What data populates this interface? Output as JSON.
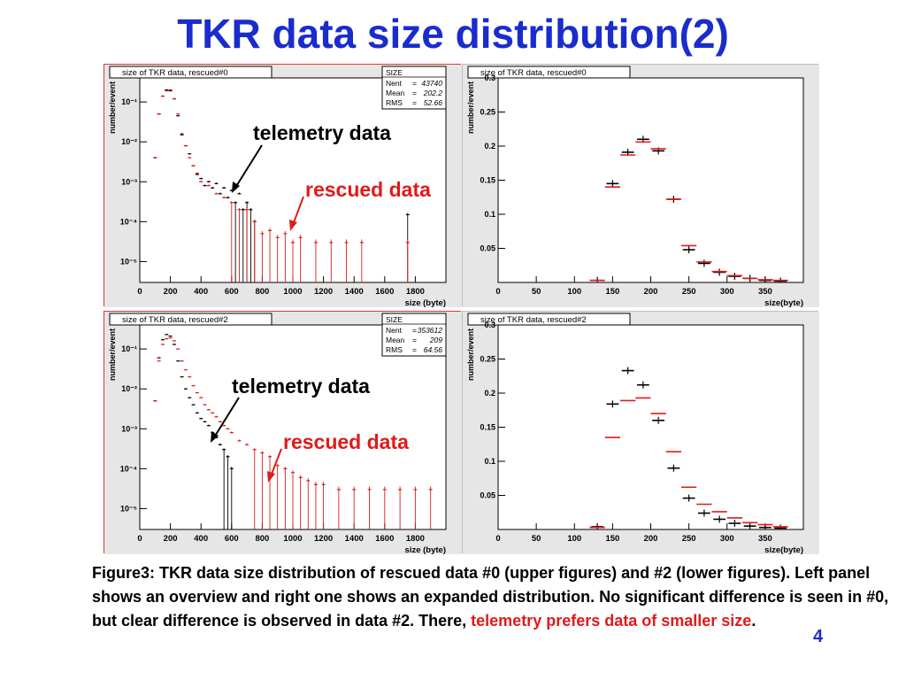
{
  "page": {
    "title": "TKR data size distribution(2)",
    "page_number": "4",
    "caption_main": "Figure3: TKR data size distribution of rescued data #0 (upper figures) and #2 (lower figures). Left panel shows an overview and right one shows an expanded distribution. No significant difference is seen in #0, but clear difference is observed in data #2. There, ",
    "caption_highlight": "telemetry prefers data of smaller size",
    "caption_end": "."
  },
  "annotations": {
    "top_telemetry": "telemetry data",
    "top_rescued": "rescued data",
    "bottom_telemetry": "telemetry data",
    "bottom_rescued": "rescued data"
  },
  "colors": {
    "telemetry": "#000000",
    "rescued": "#e01a1a",
    "title": "#1a2ccc",
    "frame": "#d93a3a",
    "panel_bg": "#e6e6e6"
  },
  "chart_data": [
    {
      "type": "scatter",
      "title": "size of TKR data, rescued#0",
      "xlabel": "size (byte)",
      "ylabel": "number/event",
      "log_y": true,
      "xlim": [
        0,
        2000
      ],
      "ylim": [
        3e-06,
        0.4
      ],
      "xticks": [
        0,
        200,
        400,
        600,
        800,
        1000,
        1200,
        1400,
        1600,
        1800
      ],
      "yticks": [
        {
          "v": 0.1,
          "label": "10⁻¹"
        },
        {
          "v": 0.01,
          "label": "10⁻²"
        },
        {
          "v": 0.001,
          "label": "10⁻³"
        },
        {
          "v": 0.0001,
          "label": "10⁻⁴"
        },
        {
          "v": 1e-05,
          "label": "10⁻⁵"
        }
      ],
      "stats": {
        "header": "SIZE",
        "rows": [
          [
            "Nent",
            "43740"
          ],
          [
            "Mean",
            "202.2"
          ],
          [
            "RMS",
            "52.66"
          ]
        ]
      },
      "series": [
        {
          "name": "telemetry data",
          "color": "#000000",
          "x": [
            100,
            125,
            150,
            175,
            200,
            225,
            250,
            275,
            300,
            325,
            350,
            375,
            400,
            425,
            450,
            475,
            500,
            525,
            550,
            575,
            600,
            625,
            650,
            675,
            700,
            725,
            750,
            1750
          ],
          "y": [
            0.004,
            0.05,
            0.14,
            0.2,
            0.19,
            0.12,
            0.045,
            0.015,
            0.008,
            0.005,
            0.0025,
            0.0016,
            0.0012,
            0.0008,
            0.001,
            0.0007,
            0.0009,
            0.0005,
            0.0007,
            0.0004,
            0.0006,
            0.0003,
            0.0005,
            0.0002,
            0.0003,
            0.0002,
            0.0001,
            0.00015
          ]
        },
        {
          "name": "rescued data",
          "color": "#e01a1a",
          "x": [
            100,
            125,
            150,
            175,
            200,
            225,
            250,
            275,
            300,
            325,
            350,
            375,
            400,
            450,
            500,
            550,
            600,
            650,
            700,
            750,
            800,
            850,
            900,
            950,
            1000,
            1050,
            1150,
            1250,
            1350,
            1450,
            1750
          ],
          "y": [
            0.004,
            0.05,
            0.14,
            0.19,
            0.2,
            0.12,
            0.05,
            0.016,
            0.008,
            0.004,
            0.0025,
            0.0015,
            0.001,
            0.0008,
            0.0005,
            0.0004,
            0.0003,
            0.0002,
            0.0002,
            0.0001,
            5e-05,
            6e-05,
            4e-05,
            5e-05,
            3e-05,
            4e-05,
            3e-05,
            3e-05,
            3e-05,
            3e-05,
            3e-05
          ]
        }
      ]
    },
    {
      "type": "scatter",
      "title": "size of TKR data, rescued#0",
      "xlabel": "size(byte)",
      "ylabel": "number/event",
      "xlim": [
        0,
        400
      ],
      "ylim": [
        0,
        0.3
      ],
      "xticks": [
        0,
        50,
        100,
        150,
        200,
        250,
        300,
        350
      ],
      "yticks": [
        0.05,
        0.1,
        0.15,
        0.2,
        0.25,
        0.3
      ],
      "bin_width": 20,
      "series": [
        {
          "name": "telemetry data",
          "color": "#000000",
          "x": [
            130,
            150,
            170,
            190,
            210,
            230,
            250,
            270,
            290,
            310,
            330,
            350,
            370
          ],
          "y": [
            0.003,
            0.145,
            0.191,
            0.21,
            0.193,
            0.122,
            0.048,
            0.028,
            0.015,
            0.009,
            0.006,
            0.003,
            0.002
          ]
        },
        {
          "name": "rescued data",
          "color": "#e01a1a",
          "x": [
            130,
            150,
            170,
            190,
            210,
            230,
            250,
            270,
            290,
            310,
            330,
            350,
            370
          ],
          "y": [
            0.003,
            0.14,
            0.187,
            0.206,
            0.196,
            0.122,
            0.054,
            0.03,
            0.016,
            0.01,
            0.006,
            0.004,
            0.003
          ]
        }
      ]
    },
    {
      "type": "scatter",
      "title": "size of TKR data, rescued#2",
      "xlabel": "size (byte)",
      "ylabel": "number/event",
      "log_y": true,
      "xlim": [
        0,
        2000
      ],
      "ylim": [
        3e-06,
        0.4
      ],
      "xticks": [
        0,
        200,
        400,
        600,
        800,
        1000,
        1200,
        1400,
        1600,
        1800
      ],
      "yticks": [
        {
          "v": 0.1,
          "label": "10⁻¹"
        },
        {
          "v": 0.01,
          "label": "10⁻²"
        },
        {
          "v": 0.001,
          "label": "10⁻³"
        },
        {
          "v": 0.0001,
          "label": "10⁻⁴"
        },
        {
          "v": 1e-05,
          "label": "10⁻⁵"
        }
      ],
      "stats": {
        "header": "SIZE",
        "rows": [
          [
            "Nent",
            "353612"
          ],
          [
            "Mean",
            "209"
          ],
          [
            "RMS",
            "64.56"
          ]
        ]
      },
      "series": [
        {
          "name": "telemetry data",
          "color": "#000000",
          "x": [
            100,
            125,
            150,
            175,
            200,
            225,
            250,
            275,
            300,
            325,
            350,
            375,
            400,
            425,
            450,
            475,
            500,
            525,
            550,
            575,
            600
          ],
          "y": [
            0.005,
            0.06,
            0.17,
            0.23,
            0.21,
            0.13,
            0.05,
            0.02,
            0.01,
            0.006,
            0.004,
            0.0025,
            0.0018,
            0.0015,
            0.0012,
            0.0008,
            0.0006,
            0.0004,
            0.0003,
            0.0002,
            0.0001
          ]
        },
        {
          "name": "rescued data",
          "color": "#e01a1a",
          "x": [
            100,
            125,
            150,
            175,
            200,
            225,
            250,
            275,
            300,
            325,
            350,
            375,
            400,
            425,
            450,
            475,
            500,
            525,
            550,
            575,
            600,
            650,
            700,
            750,
            800,
            850,
            900,
            950,
            1000,
            1050,
            1100,
            1150,
            1200,
            1300,
            1400,
            1500,
            1600,
            1700,
            1800,
            1900
          ],
          "y": [
            0.005,
            0.05,
            0.13,
            0.18,
            0.19,
            0.16,
            0.1,
            0.05,
            0.03,
            0.02,
            0.012,
            0.008,
            0.006,
            0.004,
            0.003,
            0.0025,
            0.002,
            0.0015,
            0.0012,
            0.001,
            0.0008,
            0.0005,
            0.0004,
            0.0003,
            0.00025,
            0.0002,
            0.00012,
            0.0001,
            8e-05,
            6e-05,
            5e-05,
            4e-05,
            4e-05,
            3e-05,
            3e-05,
            3e-05,
            3e-05,
            3e-05,
            3e-05,
            3e-05
          ]
        }
      ]
    },
    {
      "type": "scatter",
      "title": "size of TKR data, rescued#2",
      "xlabel": "size(byte)",
      "ylabel": "number/event",
      "xlim": [
        0,
        400
      ],
      "ylim": [
        0,
        0.3
      ],
      "xticks": [
        0,
        50,
        100,
        150,
        200,
        250,
        300,
        350
      ],
      "yticks": [
        0.05,
        0.1,
        0.15,
        0.2,
        0.25,
        0.3
      ],
      "bin_width": 20,
      "series": [
        {
          "name": "telemetry data",
          "color": "#000000",
          "x": [
            130,
            150,
            170,
            190,
            210,
            230,
            250,
            270,
            290,
            310,
            330,
            350,
            370
          ],
          "y": [
            0.004,
            0.184,
            0.233,
            0.212,
            0.16,
            0.09,
            0.046,
            0.024,
            0.015,
            0.009,
            0.005,
            0.003,
            0.002
          ]
        },
        {
          "name": "rescued data",
          "color": "#e01a1a",
          "x": [
            130,
            150,
            170,
            190,
            210,
            230,
            250,
            270,
            290,
            310,
            330,
            350,
            370
          ],
          "y": [
            0.003,
            0.135,
            0.189,
            0.193,
            0.17,
            0.114,
            0.062,
            0.037,
            0.026,
            0.017,
            0.01,
            0.007,
            0.004
          ]
        }
      ]
    }
  ]
}
